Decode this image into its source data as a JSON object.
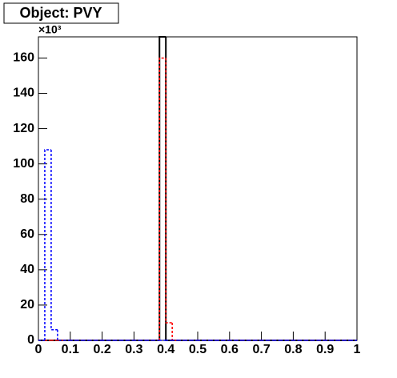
{
  "title": "Object: PVY",
  "chart_data": {
    "type": "histogram",
    "y_multiplier": "×10³",
    "bins": [
      0,
      0.02,
      0.04,
      0.06,
      0.08,
      0.1,
      0.12,
      0.14,
      0.16,
      0.18,
      0.2,
      0.22,
      0.24,
      0.26,
      0.28,
      0.3,
      0.32,
      0.34,
      0.36,
      0.38,
      0.4,
      0.42,
      0.44,
      0.46,
      0.48,
      0.5,
      0.52,
      0.54,
      0.56,
      0.58,
      0.6,
      0.62,
      0.64,
      0.66,
      0.68,
      0.7,
      0.72,
      0.74,
      0.76,
      0.78,
      0.8,
      0.82,
      0.84,
      0.86,
      0.88,
      0.9,
      0.92,
      0.94,
      0.96,
      0.98,
      1
    ],
    "series": [
      {
        "color": "#000000",
        "style": "solid",
        "values": [
          0,
          0,
          0,
          0,
          0,
          0,
          0,
          0,
          0,
          0,
          0,
          0,
          0,
          0,
          0,
          0,
          0,
          0,
          0,
          172,
          0,
          0,
          0,
          0,
          0,
          0,
          0,
          0,
          0,
          0,
          0,
          0,
          0,
          0,
          0,
          0,
          0,
          0,
          0,
          0,
          0,
          0,
          0,
          0,
          0,
          0,
          0,
          0,
          0,
          0
        ]
      },
      {
        "color": "#ff0000",
        "style": "dashed",
        "values": [
          0,
          0,
          0,
          0,
          0,
          0,
          0,
          0,
          0,
          0,
          0,
          0,
          0,
          0,
          0,
          0,
          0,
          0,
          0,
          160,
          10,
          0,
          0,
          0,
          0,
          0,
          0,
          0,
          0,
          0,
          0,
          0,
          0,
          0,
          0,
          0,
          0,
          0,
          0,
          0,
          0,
          0,
          0,
          0,
          0,
          0,
          0,
          0,
          0,
          0
        ]
      },
      {
        "color": "#0000ff",
        "style": "dashed",
        "values": [
          0,
          108,
          6,
          0,
          0,
          0,
          0,
          0,
          0,
          0,
          0,
          0,
          0,
          0,
          0,
          0,
          0,
          0,
          0,
          0,
          0,
          0,
          0,
          0,
          0,
          0,
          0,
          0,
          0,
          0,
          0,
          0,
          0,
          0,
          0,
          0,
          0,
          0,
          0,
          0,
          0,
          0,
          0,
          0,
          0,
          0,
          0,
          0,
          0,
          0
        ]
      }
    ],
    "xlim": [
      0,
      1
    ],
    "xticks": [
      0,
      0.1,
      0.2,
      0.3,
      0.4,
      0.5,
      0.6,
      0.7,
      0.8,
      0.9,
      1
    ],
    "ylim": [
      0,
      172
    ],
    "yticks": [
      0,
      20,
      40,
      60,
      80,
      100,
      120,
      140,
      160
    ]
  }
}
